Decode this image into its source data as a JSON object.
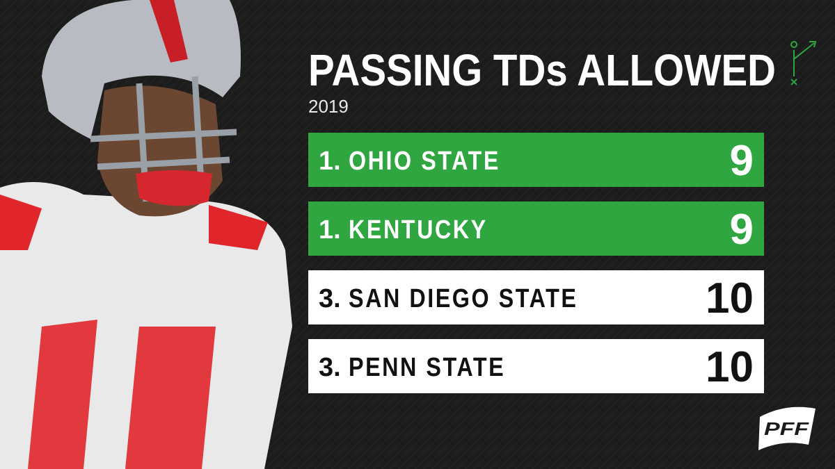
{
  "header": {
    "title": "PASSING TDs ALLOWED",
    "subtitle": "2019"
  },
  "rows": [
    {
      "rank": "1.",
      "team": "OHIO STATE",
      "value": 9,
      "color": "#2fa640",
      "text_color": "#ffffff"
    },
    {
      "rank": "1.",
      "team": "KENTUCKY",
      "value": 9,
      "color": "#2fa640",
      "text_color": "#ffffff"
    },
    {
      "rank": "3.",
      "team": "SAN DIEGO STATE",
      "value": 10,
      "color": "#ffffff",
      "text_color": "#111111"
    },
    {
      "rank": "3.",
      "team": "PENN STATE",
      "value": 10,
      "color": "#ffffff",
      "text_color": "#111111"
    }
  ],
  "logo": "PFF"
}
